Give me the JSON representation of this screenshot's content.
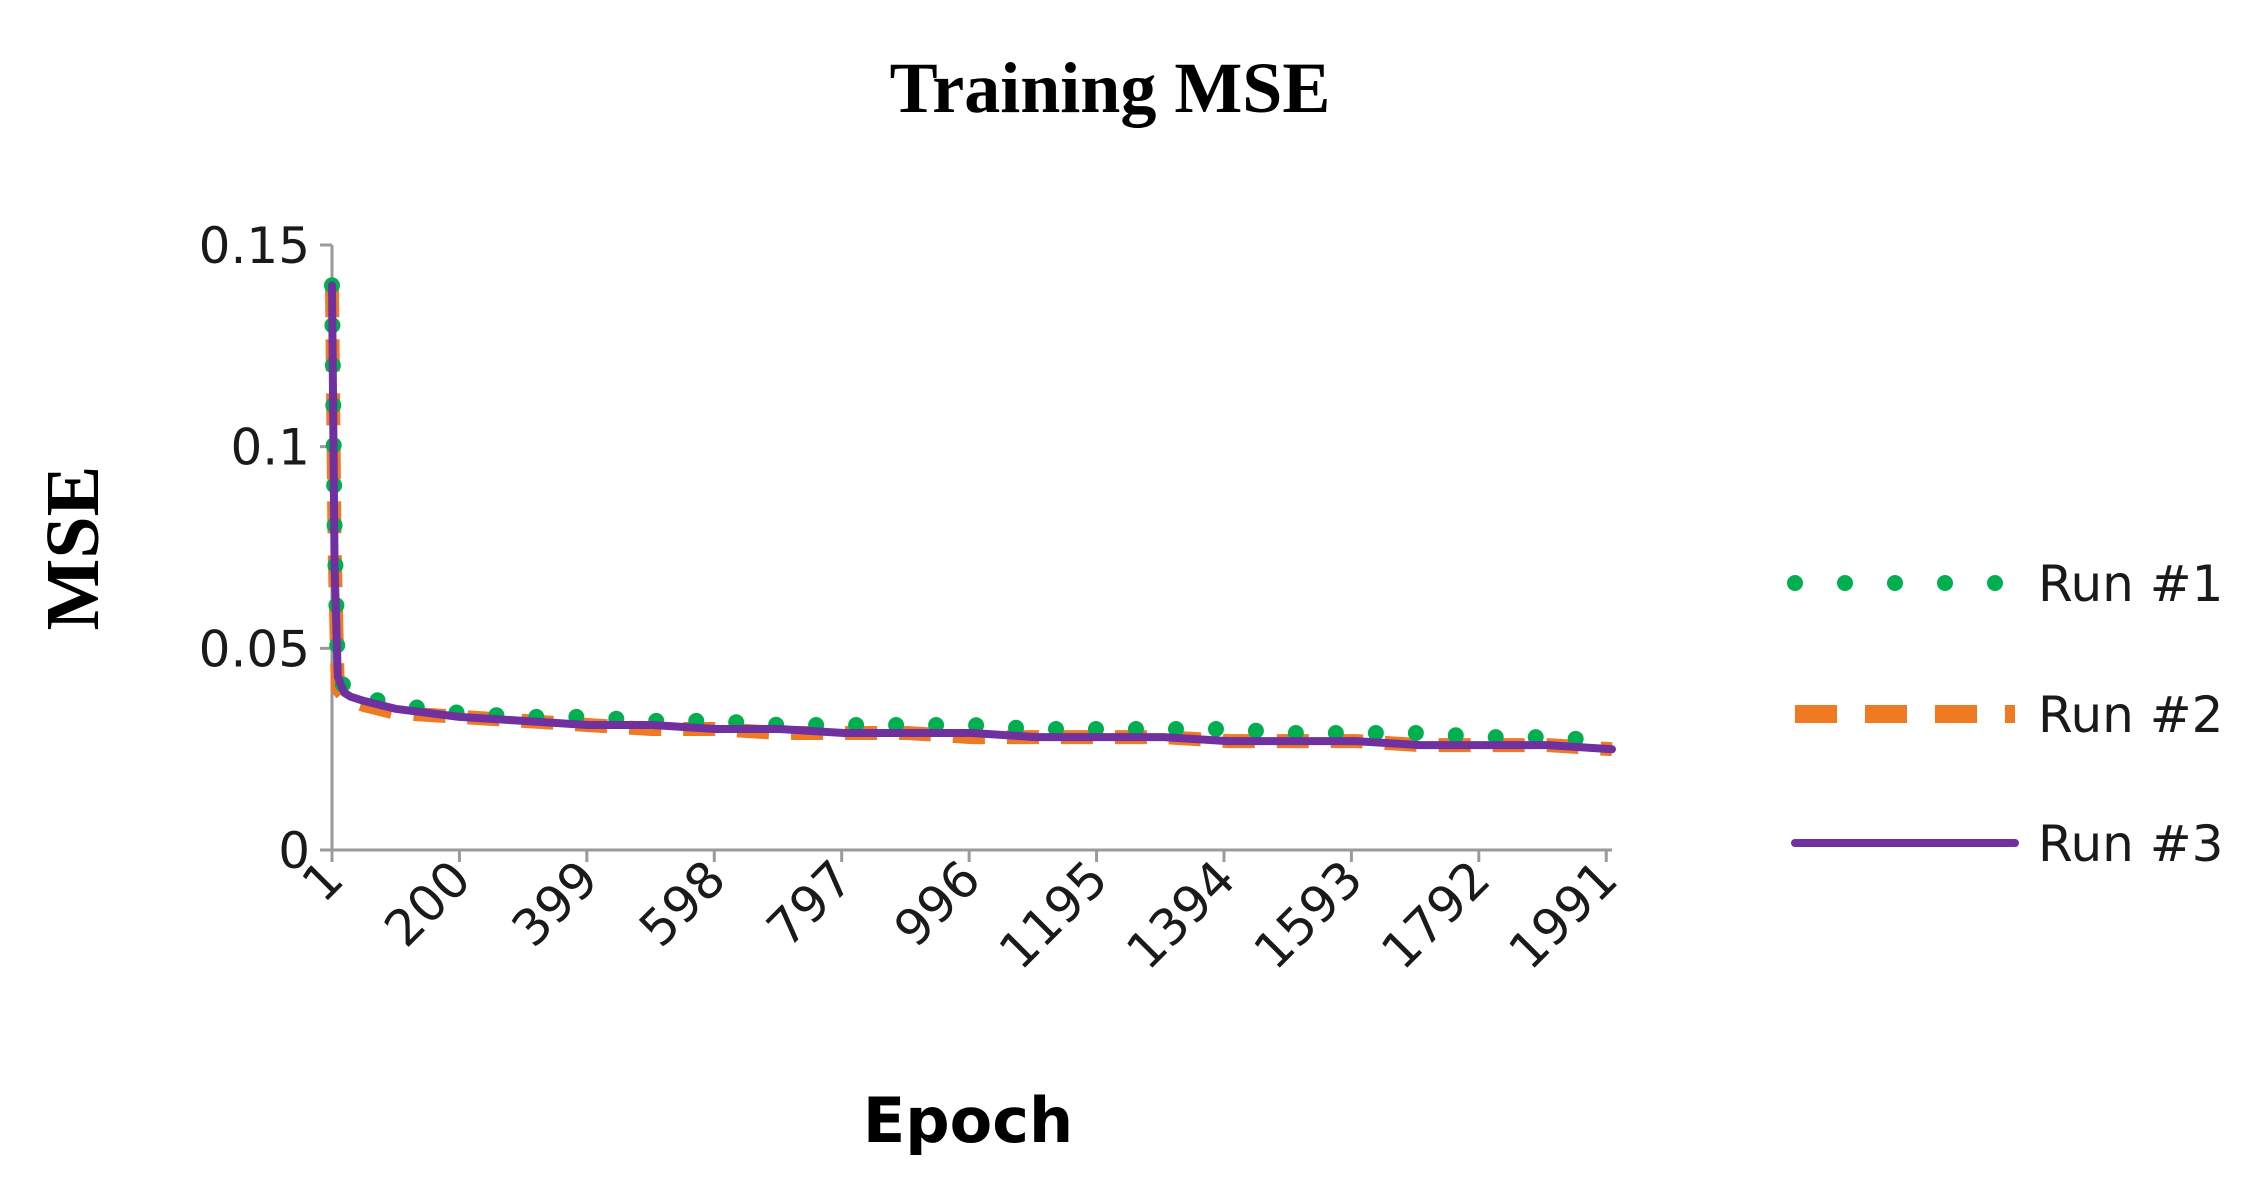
{
  "chart_data": {
    "type": "line",
    "title": "Training MSE",
    "xlabel": "Epoch",
    "ylabel": "MSE",
    "xlim": [
      1,
      2000
    ],
    "ylim": [
      0,
      0.15
    ],
    "y_ticks": [
      0,
      0.05,
      0.1,
      0.15
    ],
    "y_tick_labels": [
      "0",
      "0.05",
      "0.1",
      "0.15"
    ],
    "x_ticks": [
      1,
      200,
      399,
      598,
      797,
      996,
      1195,
      1394,
      1593,
      1792,
      1991
    ],
    "x_tick_labels": [
      "1",
      "200",
      "399",
      "598",
      "797",
      "996",
      "1195",
      "1394",
      "1593",
      "1792",
      "1991"
    ],
    "grid": false,
    "legend_position": "right",
    "series": [
      {
        "name": "Run #1",
        "color": "#00b050",
        "style": "dotted",
        "x": [
          1,
          5,
          10,
          20,
          30,
          50,
          100,
          200,
          300,
          400,
          500,
          600,
          700,
          800,
          900,
          1000,
          1100,
          1200,
          1300,
          1400,
          1500,
          1600,
          1700,
          1800,
          1900,
          2000
        ],
        "y": [
          0.14,
          0.08,
          0.045,
          0.04,
          0.039,
          0.038,
          0.036,
          0.034,
          0.033,
          0.033,
          0.032,
          0.032,
          0.031,
          0.031,
          0.031,
          0.031,
          0.03,
          0.03,
          0.03,
          0.03,
          0.029,
          0.029,
          0.029,
          0.028,
          0.028,
          0.027
        ]
      },
      {
        "name": "Run #2",
        "color": "#f07a22",
        "style": "dashed",
        "x": [
          1,
          5,
          10,
          20,
          30,
          50,
          100,
          200,
          300,
          400,
          500,
          600,
          700,
          800,
          900,
          1000,
          1100,
          1200,
          1300,
          1400,
          1500,
          1600,
          1700,
          1800,
          1900,
          2000
        ],
        "y": [
          0.14,
          0.075,
          0.04,
          0.038,
          0.037,
          0.036,
          0.034,
          0.033,
          0.032,
          0.031,
          0.03,
          0.03,
          0.029,
          0.029,
          0.029,
          0.028,
          0.028,
          0.028,
          0.028,
          0.027,
          0.027,
          0.027,
          0.026,
          0.026,
          0.026,
          0.025
        ]
      },
      {
        "name": "Run #3",
        "color": "#7030a0",
        "style": "solid",
        "x": [
          1,
          5,
          10,
          20,
          30,
          50,
          100,
          200,
          300,
          400,
          500,
          600,
          700,
          800,
          900,
          1000,
          1100,
          1200,
          1300,
          1400,
          1500,
          1600,
          1700,
          1800,
          1900,
          2000
        ],
        "y": [
          0.14,
          0.07,
          0.043,
          0.039,
          0.038,
          0.037,
          0.035,
          0.033,
          0.032,
          0.031,
          0.031,
          0.03,
          0.03,
          0.029,
          0.029,
          0.029,
          0.028,
          0.028,
          0.028,
          0.027,
          0.027,
          0.027,
          0.026,
          0.026,
          0.026,
          0.025
        ]
      }
    ]
  }
}
